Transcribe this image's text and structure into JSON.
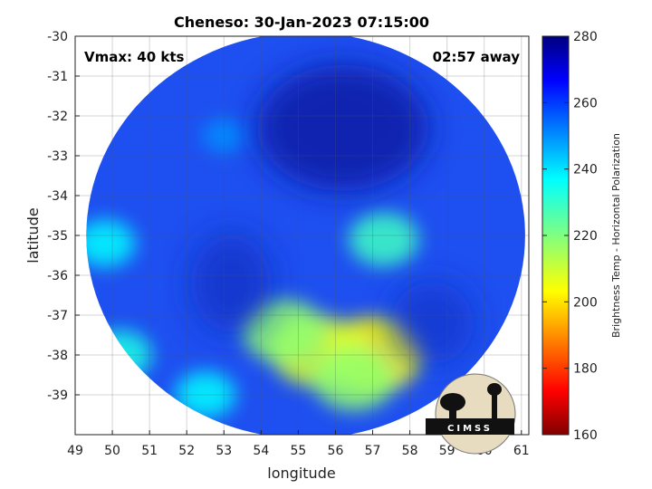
{
  "chart_data": {
    "type": "heatmap",
    "title": "Cheneso: 30-Jan-2023 07:15:00",
    "xlabel": "longitude",
    "ylabel": "latitude",
    "xlim": [
      49,
      61.2
    ],
    "ylim": [
      -40,
      -30
    ],
    "x_ticks": [
      49,
      50,
      51,
      52,
      53,
      54,
      55,
      56,
      57,
      58,
      59,
      60,
      61
    ],
    "y_ticks": [
      -30,
      -31,
      -32,
      -33,
      -34,
      -35,
      -36,
      -37,
      -38,
      -39
    ],
    "grid": true,
    "colorbar": {
      "label": "Brightness Temp - Horizontal Polarization",
      "range": [
        160,
        280
      ],
      "ticks": [
        280,
        260,
        240,
        220,
        200,
        180,
        160
      ],
      "colormap": "jet"
    },
    "swath": {
      "center": [
        55.2,
        -35.0
      ],
      "radius_lon": 5.9,
      "radius_lat": 5.1
    },
    "features": [
      {
        "lon": 57.0,
        "lat": -38.0,
        "tb": 205
      },
      {
        "lon": 55.5,
        "lat": -37.9,
        "tb": 210
      },
      {
        "lon": 54.6,
        "lat": -37.4,
        "tb": 218
      },
      {
        "lon": 56.5,
        "lat": -38.6,
        "tb": 218
      },
      {
        "lon": 57.3,
        "lat": -35.1,
        "tb": 228
      },
      {
        "lon": 49.8,
        "lat": -35.2,
        "tb": 235
      },
      {
        "lon": 50.2,
        "lat": -38.0,
        "tb": 232
      },
      {
        "lon": 53.0,
        "lat": -32.5,
        "tb": 248
      },
      {
        "lon": 52.5,
        "lat": -39.0,
        "tb": 235
      }
    ],
    "annotations": {
      "vmax": "Vmax: 40 kts",
      "time_offset": "02:57 away"
    }
  },
  "logo": {
    "text": "CIMSS"
  }
}
